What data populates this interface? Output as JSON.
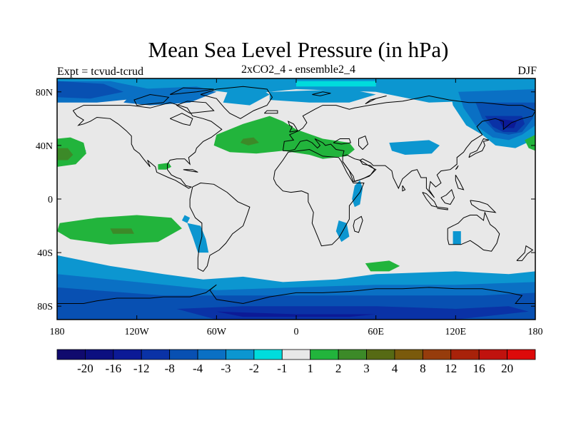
{
  "title": "Mean Sea Level Pressure (in hPa)",
  "experiment": "Expt = tcvud-tcrud",
  "run": "2xCO2_4 - ensemble2_4",
  "season": "DJF",
  "map": {
    "projection": "cylindrical equidistant",
    "lon_range": [
      -180,
      180
    ],
    "lat_range": [
      -90,
      90
    ],
    "lat_ticks": [
      {
        "value": 80,
        "label": "80N"
      },
      {
        "value": 40,
        "label": "40N"
      },
      {
        "value": 0,
        "label": "0"
      },
      {
        "value": -40,
        "label": "40S"
      },
      {
        "value": -80,
        "label": "80S"
      }
    ],
    "lon_ticks": [
      {
        "value": -180,
        "label": "180"
      },
      {
        "value": -120,
        "label": "120W"
      },
      {
        "value": -60,
        "label": "60W"
      },
      {
        "value": 0,
        "label": "0"
      },
      {
        "value": 60,
        "label": "60E"
      },
      {
        "value": 120,
        "label": "120E"
      },
      {
        "value": 180,
        "label": "180"
      }
    ]
  },
  "colorbar": {
    "boundaries": [
      "-20",
      "-16",
      "-12",
      "-8",
      "-4",
      "-3",
      "-2",
      "-1",
      "1",
      "2",
      "3",
      "4",
      "8",
      "12",
      "16",
      "20"
    ],
    "colors": [
      "#100a6e",
      "#0c0f80",
      "#0c1a96",
      "#0a32a6",
      "#0850b2",
      "#0a70c4",
      "#0c96d0",
      "#00dcdc",
      "#e8e8e8",
      "#22b43c",
      "#3c8a28",
      "#566a14",
      "#7a5a0c",
      "#963c0c",
      "#a8220a",
      "#c0120e",
      "#dd0a0a"
    ]
  },
  "regions": [
    {
      "name": "arctic-north-pacific",
      "level": "-2",
      "polygon": [
        [
          -180,
          90
        ],
        [
          180,
          90
        ],
        [
          180,
          75
        ],
        [
          100,
          72
        ],
        [
          60,
          80
        ],
        [
          0,
          82
        ],
        [
          -40,
          78
        ],
        [
          -70,
          82
        ],
        [
          -100,
          80
        ],
        [
          -140,
          80
        ],
        [
          -180,
          75
        ]
      ]
    },
    {
      "name": "north-pacific-cyan",
      "level": "-2",
      "polygon": [
        [
          115,
          85
        ],
        [
          180,
          85
        ],
        [
          180,
          45
        ],
        [
          165,
          38
        ],
        [
          150,
          40
        ],
        [
          140,
          48
        ],
        [
          128,
          55
        ],
        [
          118,
          70
        ]
      ]
    },
    {
      "name": "north-pacific-blue1",
      "level": "-3",
      "polygon": [
        [
          122,
          80
        ],
        [
          180,
          82
        ],
        [
          180,
          55
        ],
        [
          170,
          48
        ],
        [
          160,
          44
        ],
        [
          148,
          46
        ],
        [
          135,
          55
        ],
        [
          126,
          68
        ]
      ]
    },
    {
      "name": "north-pacific-blue2",
      "level": "-4",
      "polygon": [
        [
          135,
          72
        ],
        [
          180,
          72
        ],
        [
          178,
          60
        ],
        [
          170,
          50
        ],
        [
          160,
          48
        ],
        [
          150,
          50
        ],
        [
          140,
          60
        ]
      ]
    },
    {
      "name": "north-pacific-blue3",
      "level": "-8",
      "polygon": [
        [
          142,
          62
        ],
        [
          170,
          62
        ],
        [
          172,
          56
        ],
        [
          166,
          50
        ],
        [
          156,
          50
        ],
        [
          148,
          54
        ]
      ]
    },
    {
      "name": "north-pacific-blue4",
      "level": "-12",
      "polygon": [
        [
          152,
          60
        ],
        [
          166,
          58
        ],
        [
          164,
          53
        ],
        [
          156,
          53
        ]
      ]
    },
    {
      "name": "arctic-blue1",
      "level": "-3",
      "polygon": [
        [
          -180,
          88
        ],
        [
          -140,
          88
        ],
        [
          -110,
          82
        ],
        [
          -120,
          75
        ],
        [
          -150,
          72
        ],
        [
          -180,
          72
        ]
      ]
    },
    {
      "name": "arctic-blue2",
      "level": "-4",
      "polygon": [
        [
          -180,
          88
        ],
        [
          -145,
          86
        ],
        [
          -130,
          80
        ],
        [
          -155,
          75
        ],
        [
          -180,
          76
        ]
      ]
    },
    {
      "name": "canada-blue",
      "level": "-3",
      "polygon": [
        [
          -120,
          82
        ],
        [
          -75,
          84
        ],
        [
          -60,
          80
        ],
        [
          -80,
          72
        ],
        [
          -110,
          70
        ],
        [
          -130,
          72
        ]
      ]
    },
    {
      "name": "north-central-pacific-low",
      "level": "-3",
      "polygon": [
        [
          83,
          40
        ],
        [
          98,
          42
        ],
        [
          104,
          40
        ],
        [
          100,
          36
        ],
        [
          88,
          35
        ]
      ]
    },
    {
      "name": "north-central-pacific-low2",
      "level": "-4",
      "polygon": [
        [
          86,
          39
        ],
        [
          96,
          40
        ],
        [
          98,
          38
        ],
        [
          90,
          36
        ]
      ]
    },
    {
      "name": "n-atlantic-cyan-band",
      "level": "-2",
      "polygon": [
        [
          -20,
          80
        ],
        [
          40,
          82
        ],
        [
          60,
          78
        ],
        [
          40,
          72
        ],
        [
          10,
          72
        ],
        [
          -20,
          74
        ]
      ]
    },
    {
      "name": "greenland-cyan",
      "level": "-2",
      "polygon": [
        [
          -50,
          84
        ],
        [
          -30,
          84
        ],
        [
          -20,
          78
        ],
        [
          -35,
          70
        ],
        [
          -55,
          72
        ]
      ]
    },
    {
      "name": "siberia-light-strip",
      "level": "-1",
      "polygon": [
        [
          0,
          88
        ],
        [
          60,
          88
        ],
        [
          60,
          84
        ],
        [
          0,
          84
        ]
      ]
    },
    {
      "name": "n-central-pacific-cyan",
      "level": "-2",
      "polygon": [
        [
          70,
          42
        ],
        [
          100,
          44
        ],
        [
          108,
          40
        ],
        [
          102,
          34
        ],
        [
          82,
          33
        ],
        [
          72,
          36
        ]
      ]
    },
    {
      "name": "nw-pacific-cyan-lobe",
      "level": "-2",
      "polygon": [
        [
          -180,
          40
        ],
        [
          -168,
          40
        ],
        [
          -158,
          36
        ],
        [
          -164,
          32
        ],
        [
          -180,
          30
        ]
      ]
    },
    {
      "name": "npacific-green",
      "level": "1",
      "polygon": [
        [
          -180,
          45
        ],
        [
          -170,
          46
        ],
        [
          -160,
          42
        ],
        [
          -158,
          34
        ],
        [
          -166,
          26
        ],
        [
          -180,
          24
        ]
      ]
    },
    {
      "name": "npacific-green2",
      "level": "2",
      "polygon": [
        [
          -180,
          38
        ],
        [
          -172,
          38
        ],
        [
          -168,
          33
        ],
        [
          -172,
          29
        ],
        [
          -180,
          29
        ]
      ]
    },
    {
      "name": "atlantic-green",
      "level": "1",
      "polygon": [
        [
          -60,
          48
        ],
        [
          -40,
          56
        ],
        [
          -20,
          62
        ],
        [
          -10,
          58
        ],
        [
          0,
          52
        ],
        [
          20,
          45
        ],
        [
          40,
          42
        ],
        [
          44,
          37
        ],
        [
          38,
          32
        ],
        [
          20,
          30
        ],
        [
          10,
          33
        ],
        [
          -10,
          36
        ],
        [
          -30,
          34
        ],
        [
          -50,
          35
        ],
        [
          -62,
          40
        ]
      ]
    },
    {
      "name": "atlantic-green-dark",
      "level": "2",
      "polygon": [
        [
          -40,
          45
        ],
        [
          -32,
          46
        ],
        [
          -28,
          42
        ],
        [
          -36,
          40
        ],
        [
          -42,
          42
        ]
      ]
    },
    {
      "name": "gulf-green",
      "level": "1",
      "polygon": [
        [
          -104,
          26
        ],
        [
          -96,
          27
        ],
        [
          -94,
          24
        ],
        [
          -98,
          22
        ],
        [
          -104,
          22
        ]
      ]
    },
    {
      "name": "east-pacific-green",
      "level": "1",
      "polygon": [
        [
          180,
          48
        ],
        [
          180,
          36
        ],
        [
          175,
          38
        ],
        [
          172,
          44
        ]
      ]
    },
    {
      "name": "south-pacific-green",
      "level": "1",
      "polygon": [
        [
          -178,
          -18
        ],
        [
          -150,
          -14
        ],
        [
          -120,
          -12
        ],
        [
          -94,
          -14
        ],
        [
          -86,
          -22
        ],
        [
          -104,
          -32
        ],
        [
          -140,
          -34
        ],
        [
          -170,
          -30
        ],
        [
          -180,
          -24
        ]
      ]
    },
    {
      "name": "south-pacific-green-dark",
      "level": "2",
      "polygon": [
        [
          -140,
          -22
        ],
        [
          -124,
          -22
        ],
        [
          -122,
          -26
        ],
        [
          -138,
          -26
        ]
      ]
    },
    {
      "name": "s-america-cyan",
      "level": "-2",
      "polygon": [
        [
          -82,
          -18
        ],
        [
          -72,
          -20
        ],
        [
          -68,
          -30
        ],
        [
          -66,
          -40
        ],
        [
          -74,
          -40
        ],
        [
          -78,
          -28
        ]
      ]
    },
    {
      "name": "s-america-cyan-2",
      "level": "-2",
      "polygon": [
        [
          -84,
          -12
        ],
        [
          -80,
          -14
        ],
        [
          -82,
          -18
        ],
        [
          -86,
          -16
        ]
      ]
    },
    {
      "name": "africa-cyan",
      "level": "-2",
      "polygon": [
        [
          32,
          -16
        ],
        [
          38,
          -18
        ],
        [
          40,
          -28
        ],
        [
          34,
          -32
        ],
        [
          30,
          -24
        ]
      ]
    },
    {
      "name": "east-africa-cyan",
      "level": "-2",
      "polygon": [
        [
          44,
          10
        ],
        [
          48,
          14
        ],
        [
          50,
          8
        ],
        [
          48,
          -4
        ],
        [
          44,
          -6
        ],
        [
          42,
          0
        ]
      ]
    },
    {
      "name": "india-ocean-green",
      "level": "1",
      "polygon": [
        [
          52,
          -48
        ],
        [
          70,
          -46
        ],
        [
          78,
          -50
        ],
        [
          70,
          -54
        ],
        [
          56,
          -54
        ]
      ]
    },
    {
      "name": "australia-cyan",
      "level": "-2",
      "polygon": [
        [
          118,
          -24
        ],
        [
          124,
          -24
        ],
        [
          124,
          -34
        ],
        [
          118,
          -34
        ]
      ]
    },
    {
      "name": "southern-ocean-band",
      "level": "-2",
      "polygon": [
        [
          -180,
          -42
        ],
        [
          -140,
          -50
        ],
        [
          -100,
          -56
        ],
        [
          -70,
          -60
        ],
        [
          -40,
          -58
        ],
        [
          -10,
          -62
        ],
        [
          30,
          -60
        ],
        [
          60,
          -56
        ],
        [
          120,
          -54
        ],
        [
          160,
          -56
        ],
        [
          180,
          -54
        ],
        [
          180,
          -90
        ],
        [
          -180,
          -90
        ]
      ]
    },
    {
      "name": "southern-ocean-blue1",
      "level": "-3",
      "polygon": [
        [
          -180,
          -56
        ],
        [
          -120,
          -62
        ],
        [
          -60,
          -68
        ],
        [
          0,
          -66
        ],
        [
          60,
          -64
        ],
        [
          120,
          -64
        ],
        [
          180,
          -62
        ],
        [
          180,
          -90
        ],
        [
          -180,
          -90
        ]
      ]
    },
    {
      "name": "southern-ocean-blue2",
      "level": "-4",
      "polygon": [
        [
          -180,
          -66
        ],
        [
          -100,
          -72
        ],
        [
          -20,
          -72
        ],
        [
          60,
          -72
        ],
        [
          140,
          -72
        ],
        [
          180,
          -70
        ],
        [
          180,
          -90
        ],
        [
          -180,
          -90
        ]
      ]
    },
    {
      "name": "southern-ocean-blue3",
      "level": "-8",
      "polygon": [
        [
          -90,
          -82
        ],
        [
          -40,
          -80
        ],
        [
          0,
          -80
        ],
        [
          60,
          -80
        ],
        [
          120,
          -82
        ],
        [
          160,
          -80
        ],
        [
          175,
          -84
        ],
        [
          120,
          -90
        ],
        [
          -60,
          -90
        ]
      ]
    },
    {
      "name": "antarctic-darkest",
      "level": "-12",
      "polygon": [
        [
          -60,
          -84
        ],
        [
          0,
          -86
        ],
        [
          60,
          -86
        ],
        [
          40,
          -88
        ],
        [
          -40,
          -88
        ]
      ]
    }
  ]
}
